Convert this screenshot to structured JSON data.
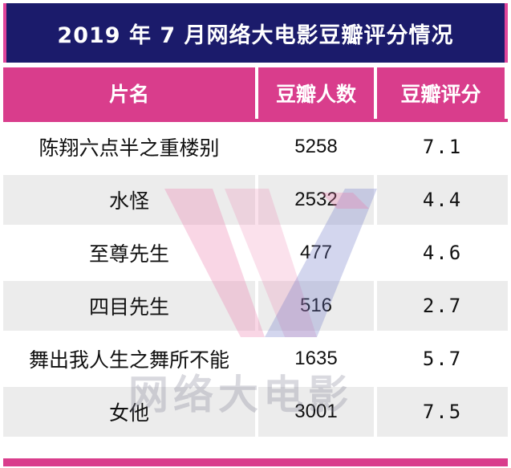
{
  "title": "2019 年 7 月网络大电影豆瓣评分情况",
  "headers": [
    "片名",
    "豆瓣人数",
    "豆瓣评分"
  ],
  "rows": [
    {
      "name": "陈翔六点半之重楼别",
      "count": "5258",
      "score": "7.1"
    },
    {
      "name": "水怪",
      "count": "2532",
      "score": "4.4"
    },
    {
      "name": "至尊先生",
      "count": "477",
      "score": "4.6"
    },
    {
      "name": "四目先生",
      "count": "516",
      "score": "2.7"
    },
    {
      "name": "舞出我人生之舞所不能",
      "count": "1635",
      "score": "5.7"
    },
    {
      "name": "女他",
      "count": "3001",
      "score": "7.5"
    }
  ],
  "watermark": {
    "text": "网络大电影",
    "logo": "W-logo"
  },
  "colors": {
    "title_bg": "#1b1b6b",
    "accent": "#d93d8c",
    "stripe": "#ececec"
  }
}
